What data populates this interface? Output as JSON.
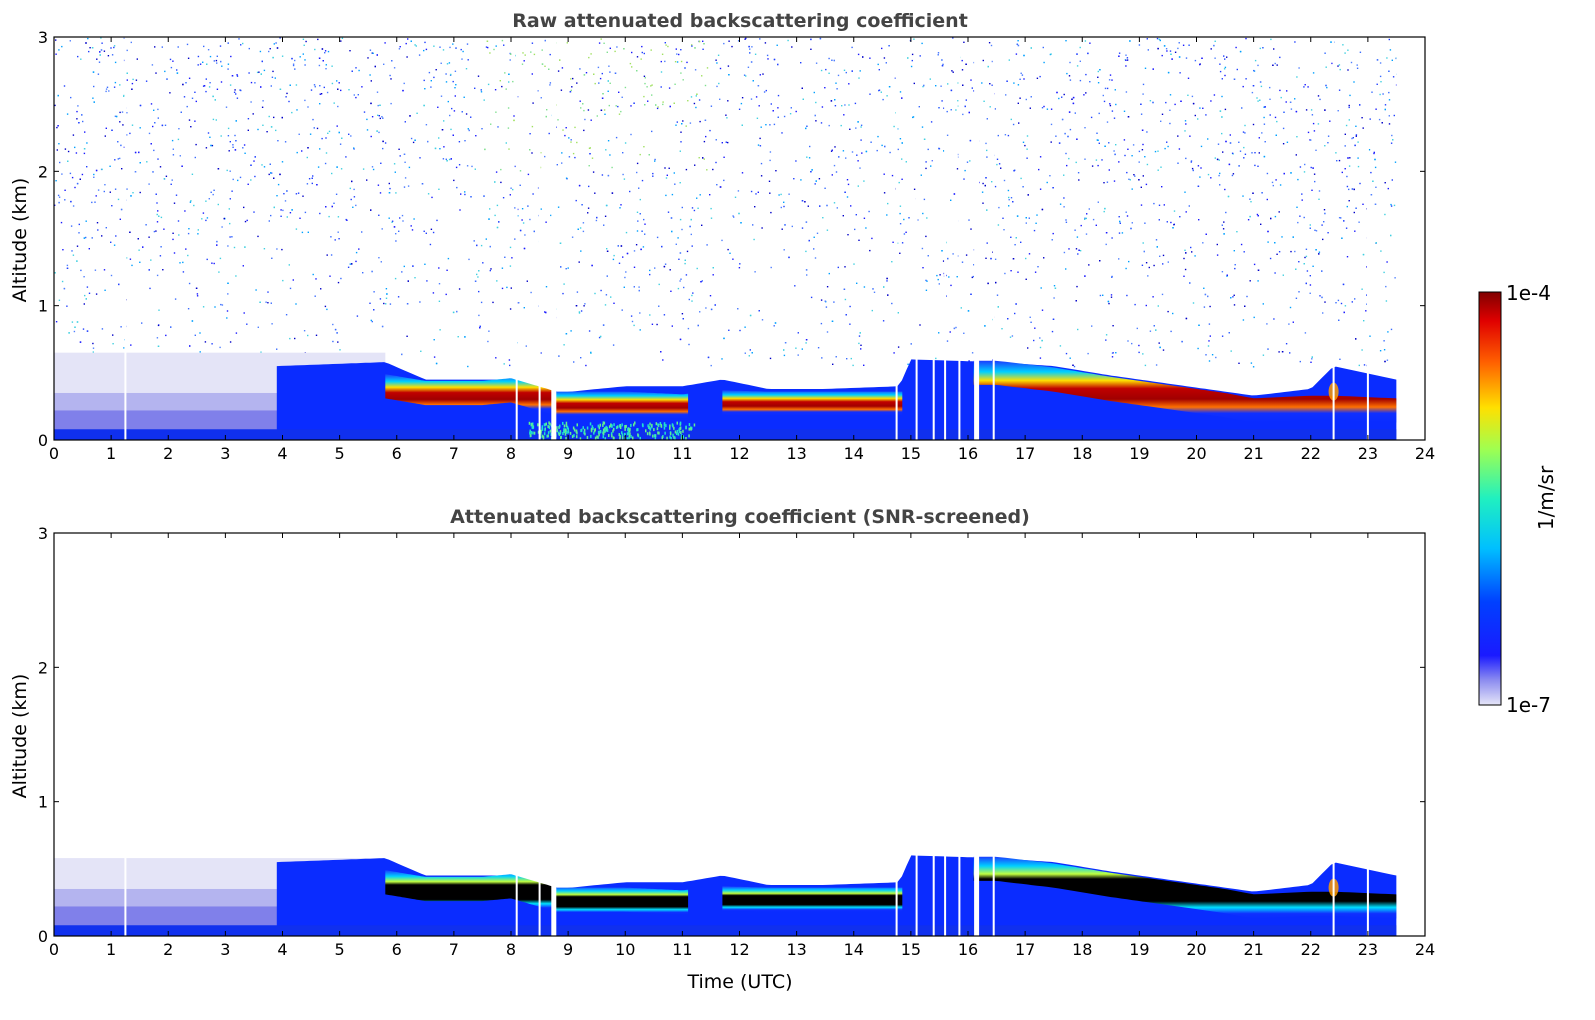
{
  "chart_data": [
    {
      "type": "heatmap",
      "title": "Raw attenuated backscattering coefficient",
      "xlabel": "",
      "ylabel": "Altitude (km)",
      "xlim": [
        0,
        24
      ],
      "ylim": [
        0,
        3
      ],
      "xticks": [
        "0",
        "1",
        "2",
        "3",
        "4",
        "5",
        "6",
        "7",
        "8",
        "9",
        "10",
        "11",
        "12",
        "13",
        "14",
        "15",
        "16",
        "17",
        "18",
        "19",
        "20",
        "21",
        "22",
        "23",
        "24"
      ],
      "yticks": [
        "0",
        "1",
        "2",
        "3"
      ],
      "noise_ceiling_km": 3,
      "gap_times_utc": [
        1.25,
        8.1,
        8.5,
        8.75,
        14.75,
        15.1,
        15.4,
        15.6,
        15.85,
        16.15,
        16.45,
        22.4,
        23.0
      ],
      "layer": {
        "time_utc": [
          0,
          3.9,
          5.8,
          6.5,
          7.5,
          8.0,
          8.8,
          10.0,
          11.0,
          11.7,
          12.5,
          13.5,
          14.8,
          15.0,
          16.5,
          17.5,
          18.5,
          19.5,
          20.5,
          21.0,
          22.0,
          22.4,
          23.5
        ],
        "top_km": [
          0.7,
          0.55,
          0.58,
          0.45,
          0.45,
          0.45,
          0.35,
          0.4,
          0.4,
          0.45,
          0.38,
          0.38,
          0.4,
          0.6,
          0.58,
          0.55,
          0.48,
          0.42,
          0.36,
          0.33,
          0.38,
          0.55,
          0.45
        ],
        "peak_km": [
          null,
          null,
          0.4,
          0.35,
          0.35,
          0.37,
          0.27,
          0.27,
          0.25,
          0.28,
          0.27,
          0.27,
          0.27,
          null,
          0.5,
          0.45,
          0.38,
          0.32,
          0.26,
          0.22,
          0.24,
          0.24,
          0.22
        ]
      },
      "colormap": "jet",
      "clim": [
        "1e-7",
        "1e-4"
      ]
    },
    {
      "type": "heatmap",
      "title": "Attenuated backscattering coefficient (SNR-screened)",
      "xlabel": "Time (UTC)",
      "ylabel": "Altitude (km)",
      "xlim": [
        0,
        24
      ],
      "ylim": [
        0,
        3
      ],
      "xticks": [
        "0",
        "1",
        "2",
        "3",
        "4",
        "5",
        "6",
        "7",
        "8",
        "9",
        "10",
        "11",
        "12",
        "13",
        "14",
        "15",
        "16",
        "17",
        "18",
        "19",
        "20",
        "21",
        "22",
        "23",
        "24"
      ],
      "yticks": [
        "0",
        "1",
        "2",
        "3"
      ],
      "screened": true,
      "saturation_color": "#000000"
    }
  ],
  "colorbar": {
    "label": "1/m/sr",
    "max_label": "1e-4",
    "min_label": "1e-7"
  }
}
